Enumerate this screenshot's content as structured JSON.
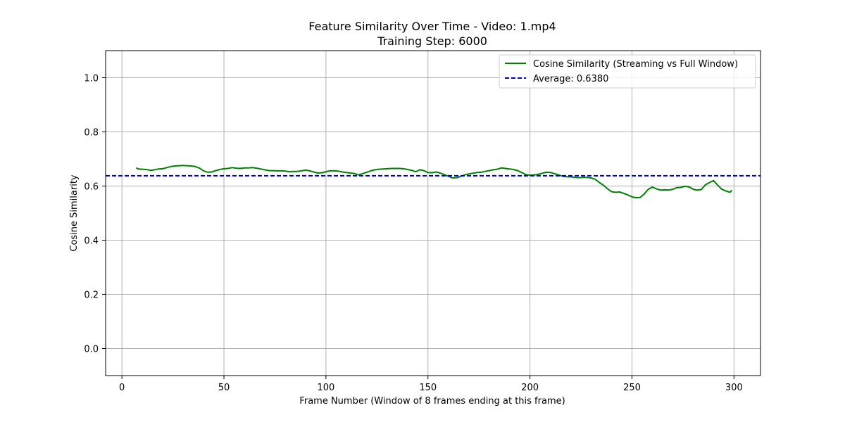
{
  "chart_data": {
    "type": "line",
    "title": "Feature Similarity Over Time - Video: 1.mp4",
    "subtitle": "Training Step: 6000",
    "xlabel": "Frame Number (Window of 8 frames ending at this frame)",
    "ylabel": "Cosine Similarity",
    "xlim": [
      -8,
      313
    ],
    "ylim": [
      -0.1,
      1.1
    ],
    "xticks": [
      0,
      50,
      100,
      150,
      200,
      250,
      300
    ],
    "yticks": [
      0.0,
      0.2,
      0.4,
      0.6,
      0.8,
      1.0
    ],
    "xtick_labels": [
      "0",
      "50",
      "100",
      "150",
      "200",
      "250",
      "300"
    ],
    "ytick_labels": [
      "0.0",
      "0.2",
      "0.4",
      "0.6",
      "0.8",
      "1.0"
    ],
    "grid": true,
    "legend_position": "top-right",
    "series": [
      {
        "name": "Cosine Similarity (Streaming vs Full Window)",
        "color": "#008000",
        "style": "solid",
        "x": [
          7,
          8,
          10,
          12,
          14,
          16,
          18,
          20,
          22,
          24,
          26,
          28,
          30,
          32,
          34,
          36,
          38,
          40,
          42,
          44,
          46,
          48,
          50,
          52,
          54,
          56,
          58,
          60,
          62,
          64,
          66,
          68,
          70,
          72,
          74,
          76,
          78,
          80,
          82,
          84,
          86,
          88,
          90,
          92,
          94,
          96,
          98,
          100,
          102,
          104,
          106,
          108,
          110,
          112,
          114,
          116,
          118,
          120,
          122,
          124,
          126,
          128,
          130,
          132,
          134,
          136,
          138,
          140,
          142,
          144,
          146,
          148,
          150,
          152,
          154,
          156,
          158,
          160,
          162,
          164,
          166,
          168,
          170,
          172,
          174,
          176,
          178,
          180,
          182,
          184,
          186,
          188,
          190,
          192,
          194,
          196,
          198,
          200,
          202,
          204,
          206,
          208,
          210,
          212,
          214,
          216,
          218,
          220,
          222,
          224,
          226,
          228,
          230,
          232,
          234,
          236,
          238,
          240,
          242,
          244,
          246,
          248,
          250,
          252,
          254,
          256,
          258,
          260,
          262,
          264,
          266,
          268,
          270,
          272,
          274,
          276,
          278,
          280,
          282,
          284,
          286,
          288,
          290,
          292,
          294,
          296,
          298,
          299
        ],
        "y": [
          0.667,
          0.663,
          0.662,
          0.661,
          0.658,
          0.66,
          0.663,
          0.664,
          0.668,
          0.672,
          0.674,
          0.675,
          0.676,
          0.675,
          0.674,
          0.672,
          0.666,
          0.656,
          0.651,
          0.652,
          0.657,
          0.661,
          0.664,
          0.665,
          0.668,
          0.666,
          0.665,
          0.667,
          0.667,
          0.668,
          0.666,
          0.663,
          0.66,
          0.657,
          0.657,
          0.656,
          0.656,
          0.655,
          0.653,
          0.654,
          0.654,
          0.656,
          0.659,
          0.656,
          0.652,
          0.648,
          0.649,
          0.653,
          0.656,
          0.656,
          0.655,
          0.652,
          0.65,
          0.648,
          0.646,
          0.641,
          0.646,
          0.651,
          0.656,
          0.66,
          0.662,
          0.663,
          0.664,
          0.665,
          0.665,
          0.665,
          0.664,
          0.661,
          0.658,
          0.653,
          0.66,
          0.657,
          0.65,
          0.649,
          0.652,
          0.648,
          0.642,
          0.636,
          0.63,
          0.631,
          0.635,
          0.641,
          0.645,
          0.647,
          0.65,
          0.651,
          0.654,
          0.657,
          0.66,
          0.662,
          0.667,
          0.665,
          0.663,
          0.661,
          0.657,
          0.65,
          0.642,
          0.64,
          0.641,
          0.643,
          0.647,
          0.651,
          0.65,
          0.646,
          0.641,
          0.636,
          0.634,
          0.634,
          0.632,
          0.631,
          0.632,
          0.632,
          0.63,
          0.625,
          0.613,
          0.603,
          0.59,
          0.579,
          0.577,
          0.578,
          0.573,
          0.567,
          0.56,
          0.557,
          0.558,
          0.571,
          0.588,
          0.596,
          0.59,
          0.585,
          0.586,
          0.585,
          0.588,
          0.594,
          0.595,
          0.599,
          0.597,
          0.588,
          0.585,
          0.587,
          0.605,
          0.613,
          0.62,
          0.603,
          0.588,
          0.582,
          0.577,
          0.585
        ]
      },
      {
        "name": "Average: 0.6380",
        "color": "#0000cc",
        "style": "dashed",
        "y_constant": 0.638
      }
    ]
  }
}
